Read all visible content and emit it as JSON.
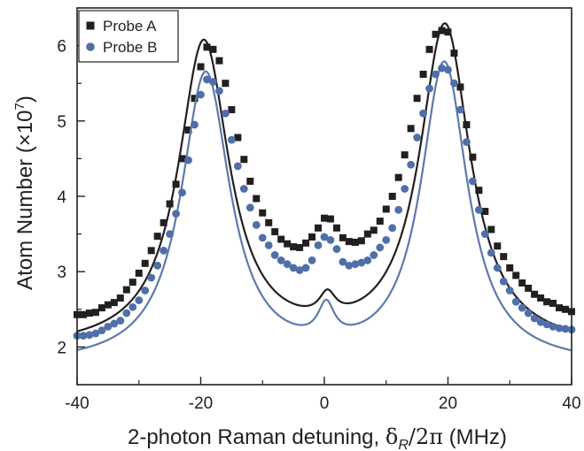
{
  "chart_data": {
    "type": "scatter",
    "xlabel": {
      "prefix": "2-photon Raman detuning, ",
      "delta": "δ",
      "sub": "R",
      "mid": "/2",
      "pi": "π",
      "unit": " (MHz)"
    },
    "ylabel": {
      "main": "Atom Number (",
      "times": "×",
      "base": "10",
      "exp": "7",
      "close": ")"
    },
    "xlim": [
      -40,
      40
    ],
    "ylim": [
      1.5,
      6.5
    ],
    "x_ticks": [
      -40,
      -20,
      0,
      20,
      40
    ],
    "x_tick_labels": [
      "-40",
      "-20",
      "0",
      "20",
      "40"
    ],
    "y_ticks": [
      2,
      3,
      4,
      5,
      6
    ],
    "y_tick_labels": [
      "2",
      "3",
      "4",
      "5",
      "6"
    ],
    "grid": false,
    "legend_position": "top-left",
    "series": [
      {
        "name": "Probe A",
        "marker": "square",
        "color": "#231f20",
        "fit_color": "#231f20",
        "fit": {
          "baseline": 1.95,
          "peaks": [
            [
              -19.5,
              4.06,
              5.0
            ],
            [
              19.5,
              4.28,
              5.0
            ],
            [
              0.5,
              0.3,
              1.6
            ]
          ]
        },
        "points": [
          [
            -40,
            2.43
          ],
          [
            -39,
            2.43
          ],
          [
            -38,
            2.45
          ],
          [
            -37,
            2.46
          ],
          [
            -36,
            2.52
          ],
          [
            -35,
            2.56
          ],
          [
            -34,
            2.59
          ],
          [
            -33,
            2.65
          ],
          [
            -32,
            2.76
          ],
          [
            -31,
            2.86
          ],
          [
            -30,
            2.98
          ],
          [
            -29,
            3.11
          ],
          [
            -28,
            3.28
          ],
          [
            -27,
            3.47
          ],
          [
            -26,
            3.65
          ],
          [
            -25,
            3.9
          ],
          [
            -24,
            4.16
          ],
          [
            -23,
            4.5
          ],
          [
            -22,
            4.88
          ],
          [
            -21,
            5.3
          ],
          [
            -20,
            5.72
          ],
          [
            -19,
            5.98
          ],
          [
            -18,
            5.95
          ],
          [
            -17,
            5.8
          ],
          [
            -16,
            5.5
          ],
          [
            -15,
            5.15
          ],
          [
            -14,
            4.78
          ],
          [
            -13,
            4.49
          ],
          [
            -12,
            4.2
          ],
          [
            -11,
            3.97
          ],
          [
            -10,
            3.78
          ],
          [
            -9,
            3.65
          ],
          [
            -8,
            3.53
          ],
          [
            -7,
            3.43
          ],
          [
            -6,
            3.37
          ],
          [
            -5,
            3.33
          ],
          [
            -4,
            3.32
          ],
          [
            -3,
            3.38
          ],
          [
            -2,
            3.46
          ],
          [
            -1,
            3.58
          ],
          [
            0,
            3.71
          ],
          [
            1,
            3.7
          ],
          [
            2,
            3.58
          ],
          [
            3,
            3.45
          ],
          [
            4,
            3.4
          ],
          [
            5,
            3.39
          ],
          [
            6,
            3.41
          ],
          [
            7,
            3.5
          ],
          [
            8,
            3.55
          ],
          [
            9,
            3.67
          ],
          [
            10,
            3.83
          ],
          [
            11,
            4.0
          ],
          [
            12,
            4.25
          ],
          [
            13,
            4.55
          ],
          [
            14,
            4.9
          ],
          [
            15,
            5.3
          ],
          [
            16,
            5.62
          ],
          [
            17,
            5.95
          ],
          [
            18,
            6.15
          ],
          [
            19,
            6.2
          ],
          [
            20,
            6.18
          ],
          [
            21,
            5.9
          ],
          [
            22,
            5.45
          ],
          [
            23,
            4.95
          ],
          [
            24,
            4.52
          ],
          [
            25,
            4.08
          ],
          [
            26,
            3.8
          ],
          [
            27,
            3.56
          ],
          [
            28,
            3.34
          ],
          [
            29,
            3.2
          ],
          [
            30,
            3.05
          ],
          [
            31,
            2.95
          ],
          [
            32,
            2.85
          ],
          [
            33,
            2.78
          ],
          [
            34,
            2.7
          ],
          [
            35,
            2.65
          ],
          [
            36,
            2.6
          ],
          [
            37,
            2.58
          ],
          [
            38,
            2.52
          ],
          [
            39,
            2.5
          ],
          [
            40,
            2.47
          ]
        ]
      },
      {
        "name": "Probe B",
        "marker": "circle",
        "color": "#4f6fa8",
        "fit_color": "#5c7aab",
        "fit": {
          "baseline": 1.74,
          "peaks": [
            [
              -19.2,
              3.86,
              4.8
            ],
            [
              19.4,
              3.99,
              4.6
            ],
            [
              0.3,
              0.45,
              1.6
            ]
          ]
        },
        "points": [
          [
            -40,
            2.15
          ],
          [
            -39,
            2.15
          ],
          [
            -38,
            2.16
          ],
          [
            -37,
            2.18
          ],
          [
            -36,
            2.22
          ],
          [
            -35,
            2.27
          ],
          [
            -34,
            2.31
          ],
          [
            -33,
            2.35
          ],
          [
            -32,
            2.45
          ],
          [
            -31,
            2.53
          ],
          [
            -30,
            2.62
          ],
          [
            -29,
            2.75
          ],
          [
            -28,
            2.92
          ],
          [
            -27,
            3.08
          ],
          [
            -26,
            3.28
          ],
          [
            -25,
            3.5
          ],
          [
            -24,
            3.77
          ],
          [
            -23,
            4.05
          ],
          [
            -22,
            4.48
          ],
          [
            -21,
            4.95
          ],
          [
            -20,
            5.35
          ],
          [
            -19,
            5.55
          ],
          [
            -18,
            5.52
          ],
          [
            -17,
            5.4
          ],
          [
            -16,
            5.1
          ],
          [
            -15,
            4.75
          ],
          [
            -14,
            4.4
          ],
          [
            -13,
            4.1
          ],
          [
            -12,
            3.85
          ],
          [
            -11,
            3.62
          ],
          [
            -10,
            3.45
          ],
          [
            -9,
            3.35
          ],
          [
            -8,
            3.22
          ],
          [
            -7,
            3.15
          ],
          [
            -6,
            3.1
          ],
          [
            -5,
            3.05
          ],
          [
            -4,
            3.02
          ],
          [
            -3,
            3.05
          ],
          [
            -2,
            3.15
          ],
          [
            -1,
            3.35
          ],
          [
            0,
            3.46
          ],
          [
            1,
            3.42
          ],
          [
            2,
            3.3
          ],
          [
            3,
            3.13
          ],
          [
            4,
            3.08
          ],
          [
            5,
            3.1
          ],
          [
            6,
            3.12
          ],
          [
            7,
            3.15
          ],
          [
            8,
            3.22
          ],
          [
            9,
            3.32
          ],
          [
            10,
            3.42
          ],
          [
            11,
            3.58
          ],
          [
            12,
            3.82
          ],
          [
            13,
            4.1
          ],
          [
            14,
            4.42
          ],
          [
            15,
            4.78
          ],
          [
            16,
            5.1
          ],
          [
            17,
            5.43
          ],
          [
            18,
            5.62
          ],
          [
            19,
            5.7
          ],
          [
            20,
            5.68
          ],
          [
            21,
            5.5
          ],
          [
            22,
            5.15
          ],
          [
            23,
            4.72
          ],
          [
            24,
            4.2
          ],
          [
            25,
            3.82
          ],
          [
            26,
            3.5
          ],
          [
            27,
            3.25
          ],
          [
            28,
            3.05
          ],
          [
            29,
            2.87
          ],
          [
            30,
            2.75
          ],
          [
            31,
            2.6
          ],
          [
            32,
            2.52
          ],
          [
            33,
            2.45
          ],
          [
            34,
            2.38
          ],
          [
            35,
            2.33
          ],
          [
            36,
            2.3
          ],
          [
            37,
            2.27
          ],
          [
            38,
            2.25
          ],
          [
            39,
            2.24
          ],
          [
            40,
            2.23
          ]
        ]
      }
    ]
  }
}
